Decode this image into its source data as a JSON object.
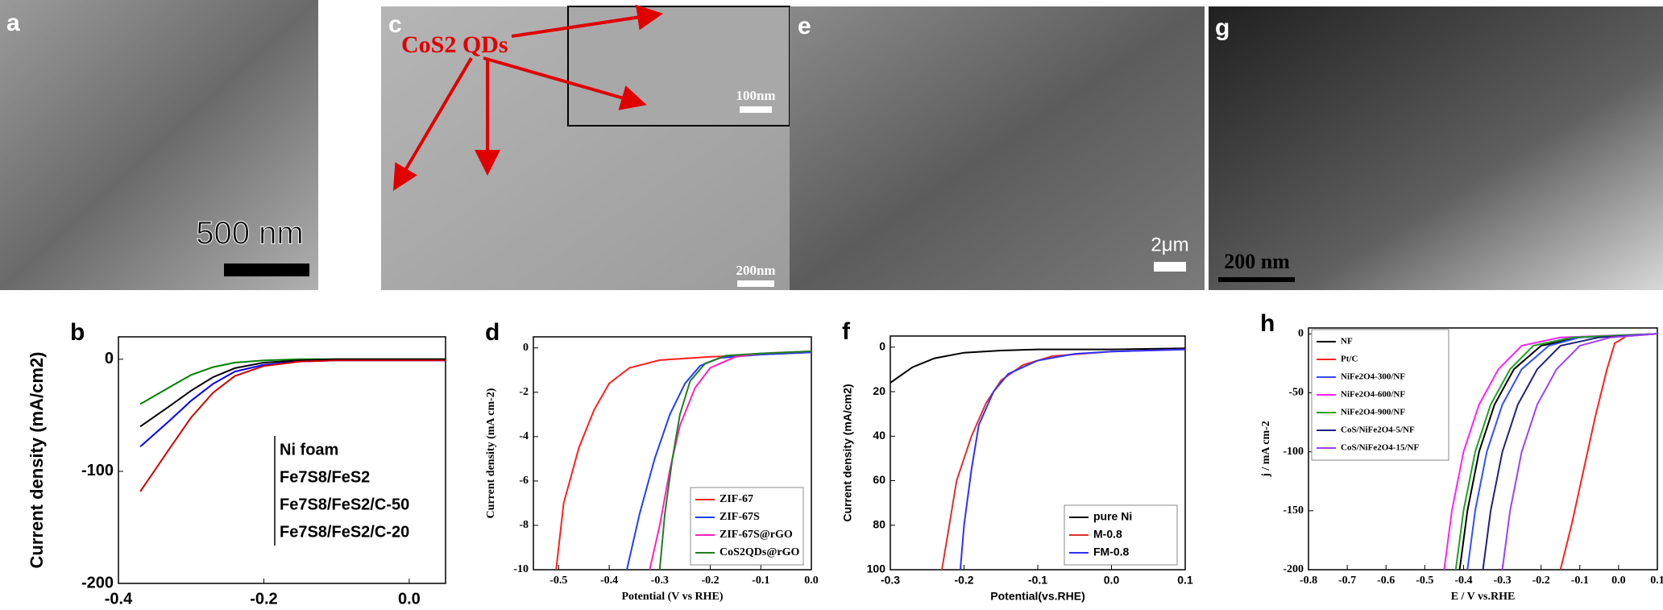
{
  "images": [
    {
      "label": "a",
      "scale_bar": "500 nm"
    },
    {
      "label": "c",
      "annotation": "CoS2 QDs",
      "inset_scale_bar": "100nm",
      "scale_bar": "200nm"
    },
    {
      "label": "e",
      "scale_bar": "2μm"
    },
    {
      "label": "g",
      "scale_bar": "200 nm"
    }
  ],
  "chart_data": [
    {
      "type": "line",
      "panel_label": "b",
      "ylabel": "Current density (mA/cm2)",
      "xlim": [
        -0.4,
        0.05
      ],
      "ylim": [
        -200,
        20
      ],
      "xticks": [
        -0.4,
        -0.2,
        {
          "value": 0,
          "label": "0.0"
        }
      ],
      "yticks": [
        0,
        -100,
        -200
      ],
      "legend": "center right",
      "legend_swatches": false,
      "series": [
        {
          "name": "Ni foam",
          "color": "#008000",
          "x": [
            -0.37,
            -0.33,
            -0.3,
            -0.27,
            -0.24,
            -0.2,
            -0.15,
            -0.1,
            0.05
          ],
          "values": [
            -40,
            -25,
            -14,
            -7,
            -3,
            -1,
            0,
            0,
            0
          ]
        },
        {
          "name": "Fe7S8/FeS2",
          "color": "#000000",
          "x": [
            -0.37,
            -0.33,
            -0.3,
            -0.27,
            -0.24,
            -0.2,
            -0.15,
            -0.1,
            0.05
          ],
          "values": [
            -60,
            -42,
            -28,
            -16,
            -8,
            -3,
            -1,
            0,
            0
          ]
        },
        {
          "name": "Fe7S8/FeS2/C-50",
          "color": "#0000ff",
          "x": [
            -0.37,
            -0.33,
            -0.3,
            -0.27,
            -0.24,
            -0.2,
            -0.15,
            -0.1,
            0.05
          ],
          "values": [
            -78,
            -55,
            -37,
            -22,
            -11,
            -5,
            -2,
            -1,
            -1
          ]
        },
        {
          "name": "Fe7S8/FeS2/C-20",
          "color": "#d00000",
          "x": [
            -0.37,
            -0.33,
            -0.3,
            -0.27,
            -0.24,
            -0.2,
            -0.15,
            -0.1,
            0.05
          ],
          "values": [
            -118,
            -80,
            -52,
            -30,
            -15,
            -6,
            -2,
            -1,
            -1
          ]
        }
      ]
    },
    {
      "type": "line",
      "panel_label": "d",
      "xlabel": "Potential (V vs RHE)",
      "ylabel": "Current density (mA cm-2)",
      "xlim": [
        -0.55,
        0
      ],
      "ylim": [
        -10,
        0.5
      ],
      "xticks": [
        -0.5,
        -0.4,
        -0.3,
        -0.2,
        -0.1,
        {
          "value": 0,
          "label": "0.0"
        }
      ],
      "yticks": [
        0,
        -2,
        -4,
        -6,
        -8,
        -10
      ],
      "legend": "lower right",
      "legend_swatches": true,
      "series": [
        {
          "name": "ZIF-67",
          "color": "#ff2020",
          "x": [
            -0.505,
            -0.49,
            -0.46,
            -0.43,
            -0.4,
            -0.36,
            -0.3,
            -0.2,
            -0.1,
            0
          ],
          "values": [
            -10,
            -7,
            -4.5,
            -2.8,
            -1.6,
            -0.9,
            -0.55,
            -0.4,
            -0.3,
            -0.2
          ]
        },
        {
          "name": "ZIF-67S",
          "color": "#2040ff",
          "x": [
            -0.365,
            -0.34,
            -0.31,
            -0.28,
            -0.25,
            -0.22,
            -0.18,
            -0.1,
            0
          ],
          "values": [
            -10,
            -7.5,
            -5,
            -3,
            -1.6,
            -0.8,
            -0.45,
            -0.3,
            -0.2
          ]
        },
        {
          "name": "ZIF-67S@rGO",
          "color": "#ff20c0",
          "x": [
            -0.32,
            -0.3,
            -0.28,
            -0.26,
            -0.23,
            -0.2,
            -0.15,
            -0.1,
            0
          ],
          "values": [
            -10,
            -8,
            -5.5,
            -3.5,
            -1.8,
            -0.9,
            -0.4,
            -0.25,
            -0.15
          ]
        },
        {
          "name": "CoS2QDs@rGO",
          "color": "#208020",
          "x": [
            -0.3,
            -0.29,
            -0.275,
            -0.26,
            -0.24,
            -0.21,
            -0.17,
            -0.1,
            0
          ],
          "values": [
            -10,
            -7.5,
            -5,
            -3,
            -1.5,
            -0.7,
            -0.35,
            -0.25,
            -0.15
          ]
        }
      ]
    },
    {
      "type": "line",
      "panel_label": "f",
      "xlabel": "Potential(vs.RHE)",
      "ylabel": "Current density (mA/cm2)",
      "xlim": [
        -0.3,
        0.1
      ],
      "ylim": [
        100,
        -5
      ],
      "xticks": [
        -0.3,
        -0.2,
        -0.1,
        {
          "value": 0,
          "label": "0.0"
        },
        0.1
      ],
      "yticks": [
        0,
        20,
        40,
        60,
        80,
        100
      ],
      "legend": "lower right",
      "legend_swatches": true,
      "series": [
        {
          "name": "pure Ni",
          "color": "#000000",
          "x": [
            -0.3,
            -0.27,
            -0.24,
            -0.2,
            -0.15,
            -0.1,
            0,
            0.1
          ],
          "values": [
            16,
            9,
            5,
            2.5,
            1.5,
            1,
            1,
            0.5
          ]
        },
        {
          "name": "M-0.8",
          "color": "#e03030",
          "x": [
            -0.23,
            -0.22,
            -0.21,
            -0.19,
            -0.17,
            -0.15,
            -0.12,
            -0.08,
            0,
            0.1
          ],
          "values": [
            100,
            80,
            60,
            40,
            25,
            15,
            8,
            4,
            2,
            1
          ]
        },
        {
          "name": "FM-0.8",
          "color": "#3030ff",
          "x": [
            -0.205,
            -0.2,
            -0.19,
            -0.18,
            -0.16,
            -0.14,
            -0.1,
            -0.05,
            0,
            0.1
          ],
          "values": [
            100,
            80,
            55,
            35,
            20,
            12,
            6,
            3,
            2,
            1
          ]
        }
      ]
    },
    {
      "type": "line",
      "panel_label": "h",
      "xlabel": "E / V vs.RHE",
      "ylabel": "j / mA cm-2",
      "xlim": [
        -0.8,
        0.1
      ],
      "ylim": [
        -200,
        5
      ],
      "xticks": [
        -0.8,
        -0.7,
        -0.6,
        -0.5,
        -0.4,
        -0.3,
        -0.2,
        -0.1,
        {
          "value": 0,
          "label": "0.0"
        },
        0.1
      ],
      "yticks": [
        0,
        -50,
        -100,
        -150,
        -200
      ],
      "legend": "upper left",
      "legend_swatches": true,
      "series": [
        {
          "name": "NF",
          "color": "#000000",
          "x": [
            -0.41,
            -0.39,
            -0.36,
            -0.32,
            -0.27,
            -0.2,
            -0.1,
            0.1
          ],
          "values": [
            -200,
            -150,
            -100,
            -60,
            -30,
            -10,
            -3,
            0
          ]
        },
        {
          "name": "Pt/C",
          "color": "#ff2020",
          "x": [
            -0.15,
            -0.12,
            -0.09,
            -0.06,
            -0.03,
            -0.01,
            0.02,
            0.1
          ],
          "values": [
            -200,
            -160,
            -115,
            -70,
            -30,
            -8,
            -2,
            0
          ]
        },
        {
          "name": "NiFe2O4-300/NF",
          "color": "#3050ff",
          "x": [
            -0.39,
            -0.37,
            -0.34,
            -0.3,
            -0.25,
            -0.18,
            -0.1,
            0.1
          ],
          "values": [
            -200,
            -150,
            -100,
            -60,
            -30,
            -10,
            -3,
            0
          ]
        },
        {
          "name": "NiFe2O4-600/NF",
          "color": "#ff20ff",
          "x": [
            -0.45,
            -0.43,
            -0.4,
            -0.36,
            -0.31,
            -0.25,
            -0.15,
            0.1
          ],
          "values": [
            -200,
            -150,
            -100,
            -60,
            -30,
            -10,
            -3,
            0
          ]
        },
        {
          "name": "NiFe2O4-900/NF",
          "color": "#20a020",
          "x": [
            -0.42,
            -0.4,
            -0.37,
            -0.33,
            -0.28,
            -0.22,
            -0.12,
            0.1
          ],
          "values": [
            -200,
            -150,
            -100,
            -60,
            -30,
            -10,
            -3,
            0
          ]
        },
        {
          "name": "CoS/NiFe2O4-5/NF",
          "color": "#202080",
          "x": [
            -0.35,
            -0.33,
            -0.3,
            -0.26,
            -0.21,
            -0.15,
            -0.05,
            0.1
          ],
          "values": [
            -200,
            -150,
            -100,
            -60,
            -30,
            -10,
            -3,
            0
          ]
        },
        {
          "name": "CoS/NiFe2O4-15/NF",
          "color": "#a040ff",
          "x": [
            -0.3,
            -0.28,
            -0.25,
            -0.21,
            -0.16,
            -0.1,
            -0.02,
            0.1
          ],
          "values": [
            -200,
            -150,
            -100,
            -60,
            -30,
            -10,
            -3,
            0
          ]
        }
      ]
    }
  ]
}
